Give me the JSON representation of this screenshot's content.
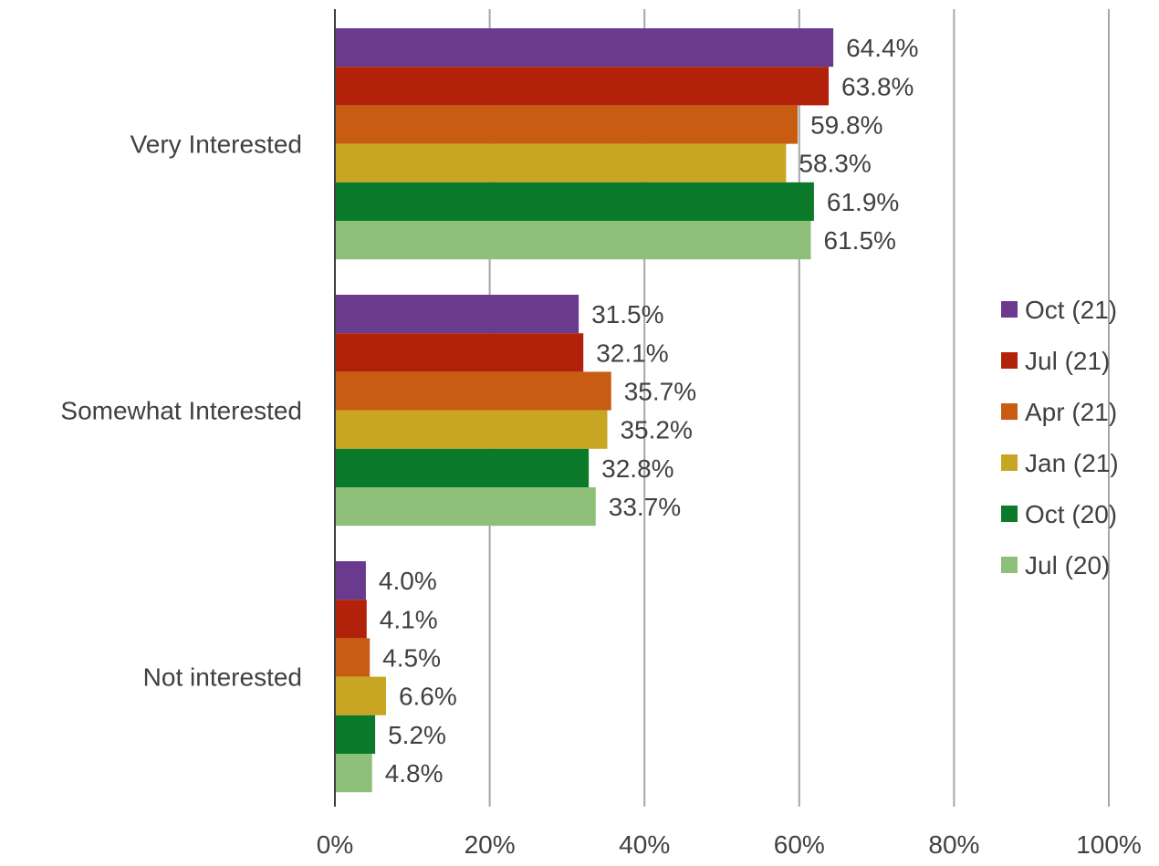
{
  "chart_data": {
    "type": "bar",
    "orientation": "horizontal",
    "categories": [
      "Very Interested",
      "Somewhat Interested",
      "Not interested"
    ],
    "series": [
      {
        "name": "Oct (21)",
        "color": "#6a3a8e",
        "values": [
          64.4,
          31.5,
          4.0
        ],
        "labels": [
          "64.4%",
          "31.5%",
          "4.0%"
        ]
      },
      {
        "name": "Jul (21)",
        "color": "#b2220a",
        "values": [
          63.8,
          32.1,
          4.1
        ],
        "labels": [
          "63.8%",
          "32.1%",
          "4.1%"
        ]
      },
      {
        "name": "Apr (21)",
        "color": "#c75c12",
        "values": [
          59.8,
          35.7,
          4.5
        ],
        "labels": [
          "59.8%",
          "35.7%",
          "4.5%"
        ]
      },
      {
        "name": "Jan (21)",
        "color": "#c9a524",
        "values": [
          58.3,
          35.2,
          6.6
        ],
        "labels": [
          "58.3%",
          "35.2%",
          "6.6%"
        ]
      },
      {
        "name": "Oct (20)",
        "color": "#0b7a2a",
        "values": [
          61.9,
          32.8,
          5.2
        ],
        "labels": [
          "61.9%",
          "32.8%",
          "5.2%"
        ]
      },
      {
        "name": "Jul (20)",
        "color": "#8ec07a",
        "values": [
          61.5,
          33.7,
          4.8
        ],
        "labels": [
          "61.5%",
          "33.7%",
          "4.8%"
        ]
      }
    ],
    "x_ticks": [
      "0%",
      "20%",
      "40%",
      "60%",
      "80%",
      "100%"
    ],
    "xlim": [
      0,
      100
    ],
    "grid": true,
    "legend": "right",
    "title": "",
    "xlabel": "",
    "ylabel": ""
  }
}
